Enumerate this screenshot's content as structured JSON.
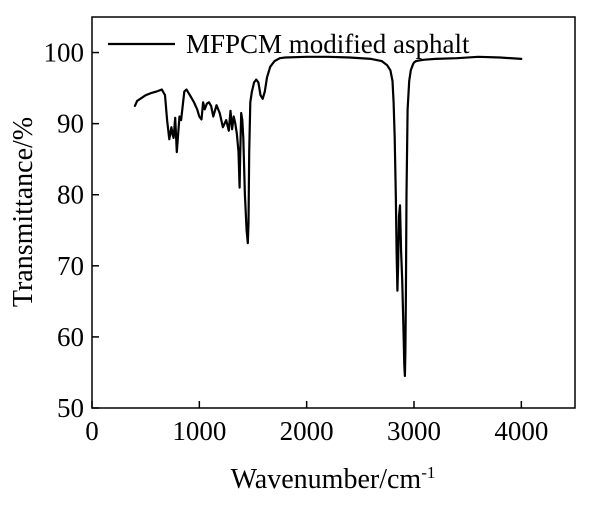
{
  "chart_data": {
    "type": "line",
    "title": "",
    "xlabel": "Wavenumber/cm",
    "xlabel_superscript": "-1",
    "ylabel": "Transmittance/%",
    "xlim": [
      0,
      4500
    ],
    "ylim": [
      50,
      105
    ],
    "x_ticks": [
      0,
      1000,
      2000,
      3000,
      4000
    ],
    "x_tick_labels": [
      "0",
      "1000",
      "2000",
      "3000",
      "4000"
    ],
    "y_ticks": [
      50,
      60,
      70,
      80,
      90,
      100
    ],
    "y_tick_labels": [
      "50",
      "60",
      "70",
      "80",
      "90",
      "100"
    ],
    "grid": false,
    "legend_position": "top",
    "line_color": "#000000",
    "series": [
      {
        "name": "MFPCM modified asphalt",
        "x": [
          400,
          420,
          450,
          500,
          550,
          600,
          650,
          680,
          700,
          720,
          740,
          750,
          760,
          775,
          790,
          805,
          815,
          830,
          845,
          860,
          880,
          900,
          920,
          950,
          980,
          1000,
          1020,
          1035,
          1050,
          1070,
          1090,
          1110,
          1130,
          1160,
          1190,
          1220,
          1250,
          1275,
          1290,
          1305,
          1320,
          1335,
          1350,
          1365,
          1375,
          1380,
          1390,
          1400,
          1410,
          1425,
          1440,
          1452,
          1458,
          1465,
          1475,
          1490,
          1510,
          1530,
          1550,
          1570,
          1590,
          1610,
          1630,
          1660,
          1700,
          1750,
          1800,
          2000,
          2200,
          2400,
          2600,
          2700,
          2750,
          2780,
          2800,
          2810,
          2820,
          2830,
          2838,
          2845,
          2852,
          2860,
          2870,
          2880,
          2890,
          2900,
          2910,
          2915,
          2920,
          2925,
          2930,
          2940,
          2955,
          2970,
          2990,
          3000,
          3020,
          3050,
          3100,
          3200,
          3400,
          3600,
          3800,
          4000
        ],
        "y": [
          92.5,
          93.2,
          93.5,
          94.0,
          94.3,
          94.5,
          94.8,
          94.0,
          90.5,
          87.8,
          89.5,
          88.5,
          88.0,
          90.8,
          86.0,
          89.0,
          91.0,
          90.5,
          92.5,
          94.5,
          94.8,
          94.3,
          93.8,
          93.0,
          92.0,
          91.0,
          90.6,
          93.0,
          92.0,
          92.8,
          93.0,
          92.5,
          91.0,
          92.6,
          91.5,
          89.5,
          90.5,
          89.0,
          91.8,
          89.2,
          91.0,
          90.0,
          88.5,
          86.0,
          81.0,
          85.0,
          91.5,
          90.5,
          88.0,
          80.0,
          75.0,
          73.2,
          76.0,
          86.0,
          93.0,
          94.5,
          95.8,
          96.2,
          95.8,
          94.0,
          93.5,
          94.5,
          96.5,
          98.0,
          98.8,
          99.2,
          99.3,
          99.4,
          99.4,
          99.3,
          99.1,
          98.8,
          98.2,
          97.5,
          96.0,
          93.0,
          88.0,
          80.0,
          72.0,
          66.5,
          70.0,
          77.0,
          78.5,
          72.0,
          68.0,
          62.0,
          56.0,
          54.5,
          58.0,
          66.0,
          80.0,
          92.0,
          96.0,
          97.5,
          98.3,
          98.6,
          98.8,
          98.9,
          99.0,
          99.1,
          99.2,
          99.4,
          99.3,
          99.1
        ]
      }
    ]
  }
}
